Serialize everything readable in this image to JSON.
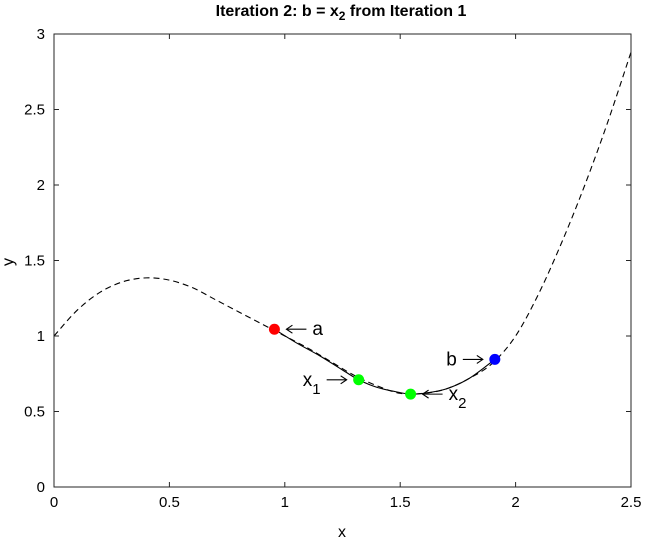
{
  "chart_data": {
    "type": "line",
    "title": "Iteration 2: b = x",
    "title_subscript": "2",
    "title_suffix": " from Iteration 1",
    "xlabel": "x",
    "ylabel": "y",
    "xlim": [
      0,
      2.5
    ],
    "ylim": [
      0,
      3
    ],
    "xticks": [
      0,
      0.5,
      1,
      1.5,
      2,
      2.5
    ],
    "xtick_labels": [
      "0",
      "0.5",
      "1",
      "1.5",
      "2",
      "2.5"
    ],
    "yticks": [
      0,
      0.5,
      1,
      1.5,
      2,
      2.5,
      3
    ],
    "ytick_labels": [
      "0",
      "0.5",
      "1",
      "1.5",
      "2",
      "2.5",
      "3"
    ],
    "grid": false,
    "series": [
      {
        "style": "dashed",
        "color": "#000000",
        "x": [
          0,
          0.1,
          0.2,
          0.3,
          0.4,
          0.5,
          0.6,
          0.7,
          0.8,
          0.9,
          1.0,
          1.1,
          1.2,
          1.3,
          1.4,
          1.5,
          1.6,
          1.7,
          1.8,
          1.9,
          2.0,
          2.1,
          2.2,
          2.3,
          2.4,
          2.5
        ],
        "y": [
          1.0,
          1.17,
          1.29,
          1.36,
          1.385,
          1.37,
          1.32,
          1.24,
          1.16,
          1.08,
          1.0,
          0.92,
          0.83,
          0.74,
          0.67,
          0.62,
          0.62,
          0.65,
          0.72,
          0.82,
          1.0,
          1.28,
          1.62,
          2.0,
          2.42,
          2.88
        ]
      },
      {
        "style": "solid",
        "color": "#000000",
        "x": [
          0.955,
          1.05,
          1.15,
          1.25,
          1.32,
          1.4,
          1.5,
          1.545,
          1.6,
          1.7,
          1.8,
          1.91
        ],
        "y": [
          1.045,
          0.955,
          0.87,
          0.775,
          0.71,
          0.66,
          0.625,
          0.615,
          0.62,
          0.65,
          0.72,
          0.845
        ]
      }
    ],
    "points": [
      {
        "name": "a",
        "sub": "",
        "x": 0.955,
        "y": 1.045,
        "color": "#ff0000",
        "label_side": "right"
      },
      {
        "name": "x",
        "sub": "1",
        "x": 1.32,
        "y": 0.71,
        "color": "#00ff00",
        "label_side": "left"
      },
      {
        "name": "x",
        "sub": "2",
        "x": 1.545,
        "y": 0.615,
        "color": "#00ff00",
        "label_side": "right"
      },
      {
        "name": "b",
        "sub": "",
        "x": 1.91,
        "y": 0.845,
        "color": "#0000ff",
        "label_side": "left"
      }
    ]
  }
}
